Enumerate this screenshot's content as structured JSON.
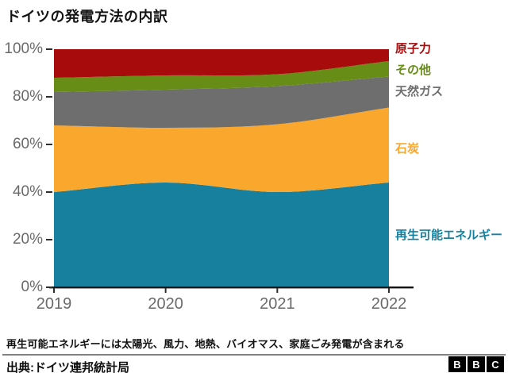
{
  "title": "ドイツの発電方法の内訳",
  "chart_data": {
    "type": "area",
    "stacked": true,
    "title": "ドイツの発電方法の内訳",
    "x": [
      2019,
      2020,
      2021,
      2022
    ],
    "x_ticks": [
      "2019",
      "2020",
      "2021",
      "2022"
    ],
    "y_ticks": [
      "100%",
      "80%",
      "60%",
      "40%",
      "20%",
      "0%"
    ],
    "ylim": [
      0,
      100
    ],
    "unit": "%",
    "grid": false,
    "legend_position": "right",
    "series": [
      {
        "name": "再生可能エネルギー",
        "color": "#17809E",
        "values": [
          40,
          44,
          40,
          44
        ]
      },
      {
        "name": "石炭",
        "color": "#FAA72E",
        "values": [
          28,
          23,
          28.5,
          31.5
        ]
      },
      {
        "name": "天然ガス",
        "color": "#6E6E6E",
        "values": [
          14,
          16,
          16,
          13
        ]
      },
      {
        "name": "その他",
        "color": "#688D17",
        "values": [
          6,
          6,
          5,
          6.5
        ]
      },
      {
        "name": "原子力",
        "color": "#A80B0B",
        "values": [
          12,
          11,
          10.5,
          5
        ]
      }
    ]
  },
  "footer": {
    "note": "再生可能エネルギーには太陽光、風力、地熱、バイオマス、家庭ごみ発電が含まれる",
    "source": "出典:ドイツ連邦統計局",
    "logo_letters": [
      "B",
      "B",
      "C"
    ]
  },
  "colors": {
    "axis_text": "#6A6A6A",
    "axis_line": "#141414",
    "tick": "#2e2e2e",
    "divider": "#808080",
    "title_text": "#141414"
  }
}
